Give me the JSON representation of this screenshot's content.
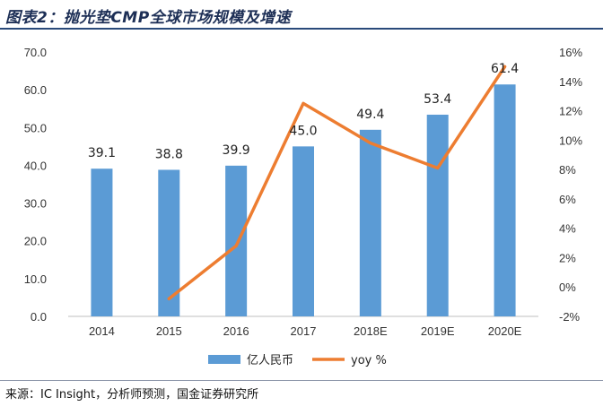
{
  "header": {
    "title": "图表2：抛光垫CMP全球市场规模及增速"
  },
  "footer": {
    "source": "来源：IC Insight，分析师预测，国金证券研究所"
  },
  "colors": {
    "bar": "#5b9bd5",
    "line": "#ed7d31",
    "title": "#1d2f56"
  },
  "chart_data": {
    "type": "bar+line",
    "categories": [
      "2014",
      "2015",
      "2016",
      "2017",
      "2018E",
      "2019E",
      "2020E"
    ],
    "series": [
      {
        "name": "亿人民币",
        "type": "bar",
        "axis": "left",
        "values": [
          39.1,
          38.8,
          39.9,
          45.0,
          49.4,
          53.4,
          61.4
        ],
        "labels": [
          "39.1",
          "38.8",
          "39.9",
          "45.0",
          "49.4",
          "53.4",
          "61.4"
        ]
      },
      {
        "name": "yoy %",
        "type": "line",
        "axis": "right",
        "values": [
          null,
          -0.8,
          2.8,
          12.5,
          9.8,
          8.1,
          15.0
        ]
      }
    ],
    "y_left": {
      "min": 0,
      "max": 70,
      "step": 10,
      "ticks": [
        "0.0",
        "10.0",
        "20.0",
        "30.0",
        "40.0",
        "50.0",
        "60.0",
        "70.0"
      ]
    },
    "y_right": {
      "min": -2,
      "max": 16,
      "step": 2,
      "ticks": [
        "-2%",
        "0%",
        "2%",
        "4%",
        "6%",
        "8%",
        "10%",
        "12%",
        "14%",
        "16%"
      ]
    },
    "grid": false,
    "legend_position": "bottom"
  }
}
